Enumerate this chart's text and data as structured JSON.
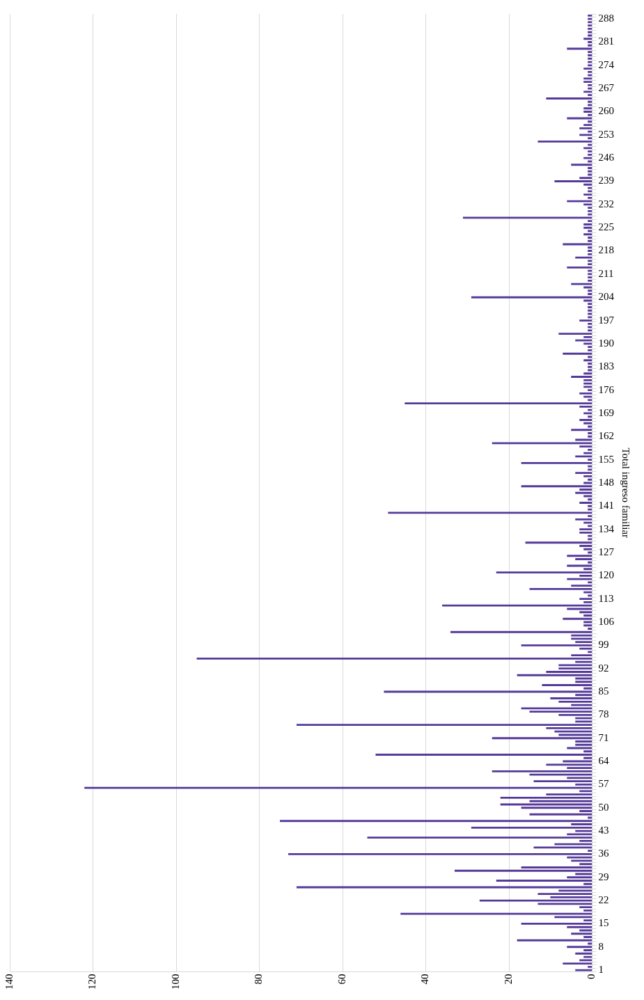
{
  "chart_data": {
    "type": "bar",
    "orientation": "horizontal",
    "ylabel": "Total ingreso familiar",
    "categories": [
      null,
      "288",
      null,
      null,
      null,
      null,
      null,
      null,
      "281",
      null,
      null,
      null,
      null,
      null,
      null,
      "274",
      null,
      null,
      null,
      null,
      null,
      null,
      "267",
      null,
      null,
      null,
      null,
      null,
      null,
      "260",
      null,
      null,
      null,
      null,
      null,
      null,
      "253",
      null,
      null,
      null,
      null,
      null,
      null,
      "246",
      null,
      null,
      null,
      null,
      null,
      null,
      "239",
      null,
      null,
      null,
      null,
      null,
      null,
      "232",
      null,
      null,
      null,
      null,
      null,
      null,
      "225",
      null,
      null,
      null,
      null,
      null,
      null,
      "218",
      null,
      null,
      null,
      null,
      null,
      null,
      "211",
      null,
      null,
      null,
      null,
      null,
      null,
      "204",
      null,
      null,
      null,
      null,
      null,
      null,
      "197",
      null,
      null,
      null,
      null,
      null,
      null,
      "190",
      null,
      null,
      null,
      null,
      null,
      null,
      "183",
      null,
      null,
      null,
      null,
      null,
      null,
      "176",
      null,
      null,
      null,
      null,
      null,
      null,
      "169",
      null,
      null,
      null,
      null,
      null,
      null,
      "162",
      null,
      null,
      null,
      null,
      null,
      null,
      "155",
      null,
      null,
      null,
      null,
      null,
      null,
      "148",
      null,
      null,
      null,
      null,
      null,
      null,
      "141",
      null,
      null,
      null,
      null,
      null,
      null,
      "134",
      null,
      null,
      null,
      null,
      null,
      null,
      "127",
      null,
      null,
      null,
      null,
      null,
      null,
      "120",
      null,
      null,
      null,
      null,
      null,
      null,
      "113",
      null,
      null,
      null,
      null,
      null,
      null,
      "106",
      null,
      null,
      null,
      null,
      null,
      null,
      "99",
      null,
      null,
      null,
      null,
      null,
      null,
      "92",
      null,
      null,
      null,
      null,
      null,
      null,
      "85",
      null,
      null,
      null,
      null,
      null,
      null,
      "78",
      null,
      null,
      null,
      null,
      null,
      null,
      "71",
      null,
      null,
      null,
      null,
      null,
      null,
      "64",
      null,
      null,
      null,
      null,
      null,
      null,
      "57",
      null,
      null,
      null,
      null,
      null,
      null,
      "50",
      null,
      null,
      null,
      null,
      null,
      null,
      "43",
      null,
      null,
      null,
      null,
      null,
      null,
      "36",
      null,
      null,
      null,
      null,
      null,
      null,
      "29",
      null,
      null,
      null,
      null,
      null,
      null,
      "22",
      null,
      null,
      null,
      null,
      null,
      null,
      "15",
      null,
      null,
      null,
      null,
      null,
      null,
      "8",
      null,
      null,
      null,
      null,
      null,
      null,
      "1"
    ],
    "values": [
      1,
      1,
      1,
      1,
      1,
      1,
      1,
      2,
      1,
      1,
      6,
      1,
      1,
      1,
      1,
      1,
      2,
      1,
      1,
      2,
      2,
      1,
      1,
      2,
      1,
      11,
      1,
      1,
      2,
      2,
      1,
      6,
      1,
      2,
      3,
      1,
      3,
      1,
      13,
      1,
      2,
      1,
      1,
      2,
      1,
      5,
      1,
      1,
      1,
      3,
      9,
      2,
      1,
      1,
      2,
      1,
      6,
      2,
      1,
      1,
      1,
      31,
      1,
      2,
      2,
      1,
      2,
      1,
      1,
      7,
      1,
      1,
      1,
      4,
      1,
      1,
      6,
      1,
      1,
      1,
      1,
      5,
      2,
      1,
      1,
      29,
      2,
      1,
      1,
      1,
      1,
      1,
      3,
      1,
      1,
      1,
      8,
      2,
      4,
      2,
      1,
      1,
      7,
      1,
      2,
      1,
      1,
      1,
      2,
      5,
      2,
      2,
      2,
      1,
      3,
      2,
      1,
      45,
      3,
      1,
      2,
      1,
      3,
      2,
      1,
      5,
      1,
      1,
      4,
      24,
      3,
      1,
      2,
      4,
      1,
      17,
      1,
      1,
      4,
      2,
      1,
      2,
      17,
      3,
      4,
      2,
      1,
      3,
      1,
      1,
      49,
      1,
      4,
      2,
      1,
      3,
      3,
      1,
      1,
      16,
      3,
      2,
      1,
      6,
      4,
      1,
      6,
      2,
      23,
      3,
      6,
      1,
      5,
      15,
      2,
      1,
      3,
      2,
      36,
      6,
      3,
      2,
      7,
      2,
      2,
      1,
      34,
      5,
      5,
      4,
      17,
      3,
      1,
      5,
      95,
      4,
      8,
      8,
      11,
      18,
      4,
      4,
      12,
      2,
      50,
      4,
      10,
      8,
      5,
      17,
      15,
      8,
      4,
      4,
      71,
      11,
      9,
      8,
      24,
      4,
      4,
      6,
      2,
      52,
      2,
      7,
      11,
      6,
      24,
      15,
      6,
      14,
      4,
      122,
      3,
      11,
      22,
      15,
      22,
      17,
      3,
      15,
      1,
      75,
      5,
      29,
      4,
      6,
      54,
      3,
      9,
      14,
      1,
      73,
      6,
      5,
      3,
      17,
      33,
      4,
      6,
      23,
      2,
      71,
      8,
      13,
      10,
      27,
      13,
      3,
      2,
      46,
      9,
      2,
      17,
      6,
      3,
      5,
      2,
      18,
      1,
      6,
      2,
      4,
      2,
      3,
      7,
      1,
      4
    ],
    "color": "#553a99",
    "xlim": [
      140,
      0
    ],
    "xticks": [
      0,
      20,
      40,
      60,
      80,
      100,
      120,
      140
    ],
    "grid": "x"
  }
}
